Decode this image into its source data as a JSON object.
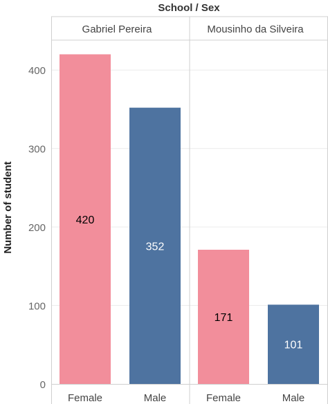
{
  "chart_data": {
    "type": "bar",
    "header_title": "School / Sex",
    "ylabel": "Number of student",
    "ylim": [
      0,
      450
    ],
    "yticks": [
      0,
      100,
      200,
      300,
      400
    ],
    "grid": true,
    "panels": [
      {
        "name": "Gabriel Pereira",
        "bars": [
          {
            "category": "Female",
            "value": 420,
            "label": "420",
            "color": "#F28E9B",
            "label_color": "#000000"
          },
          {
            "category": "Male",
            "value": 352,
            "label": "352",
            "color": "#4E73A0",
            "label_color": "#FFFFFF"
          }
        ]
      },
      {
        "name": "Mousinho da Silveira",
        "bars": [
          {
            "category": "Female",
            "value": 171,
            "label": "171",
            "color": "#F28E9B",
            "label_color": "#000000"
          },
          {
            "category": "Male",
            "value": 101,
            "label": "101",
            "color": "#4E73A0",
            "label_color": "#FFFFFF"
          }
        ]
      }
    ]
  }
}
